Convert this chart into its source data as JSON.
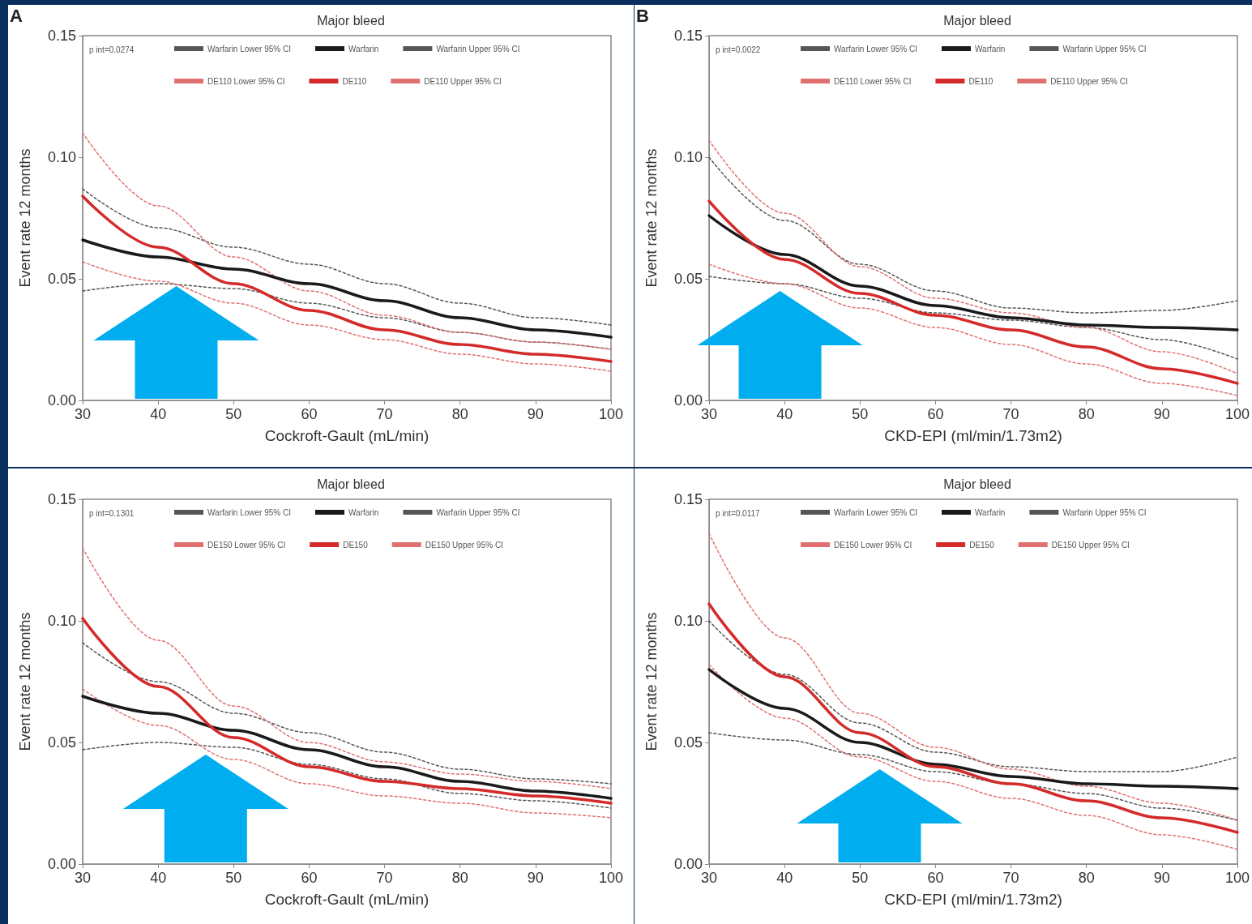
{
  "chart_data": [
    {
      "type": "line",
      "title": "Major bleed",
      "xlabel": "Cockroft-Gault (mL/min)",
      "ylabel": "Event rate 12 months",
      "annotations": [
        "p int=0.0274",
        "A"
      ],
      "x": [
        30,
        40,
        50,
        60,
        70,
        80,
        90,
        100
      ],
      "xlim": [
        30,
        100
      ],
      "xticks": [
        30,
        40,
        50,
        60,
        70,
        80,
        90,
        100
      ],
      "ylim": [
        0,
        0.15
      ],
      "yticks": [
        {
          "value": 0,
          "label": "0.00"
        },
        {
          "value": 0.05,
          "label": "0.05"
        },
        {
          "value": 0.1,
          "label": "0.10"
        },
        {
          "value": 0.15,
          "label": "0.15"
        }
      ],
      "grid": false,
      "legend": "top",
      "marker": "none",
      "series": [
        {
          "name": "Warfarin Lower 95% CI",
          "color": "#555555",
          "line_style": "dotted",
          "values": [
            0.045,
            0.048,
            0.046,
            0.04,
            0.034,
            0.028,
            0.024,
            0.021
          ]
        },
        {
          "name": "Warfarin",
          "color": "#1a1a1a",
          "line_style": "solid",
          "values": [
            0.066,
            0.059,
            0.054,
            0.048,
            0.041,
            0.034,
            0.029,
            0.026
          ]
        },
        {
          "name": "Warfarin Upper 95% CI",
          "color": "#555555",
          "line_style": "dotted",
          "values": [
            0.087,
            0.071,
            0.063,
            0.056,
            0.048,
            0.04,
            0.034,
            0.031
          ]
        },
        {
          "name": "DE110 Lower 95% CI",
          "color": "#e07070",
          "line_style": "dotted",
          "values": [
            0.057,
            0.049,
            0.04,
            0.031,
            0.025,
            0.019,
            0.015,
            0.012
          ]
        },
        {
          "name": "DE110",
          "color": "#d42a2a",
          "line_style": "solid",
          "values": [
            0.084,
            0.063,
            0.048,
            0.037,
            0.029,
            0.023,
            0.019,
            0.016
          ]
        },
        {
          "name": "DE110 Upper 95% CI",
          "color": "#e07070",
          "line_style": "dotted",
          "values": [
            0.11,
            0.08,
            0.059,
            0.045,
            0.035,
            0.028,
            0.024,
            0.021
          ]
        }
      ]
    },
    {
      "type": "line",
      "title": "Major bleed",
      "xlabel": "CKD-EPI (ml/min/1.73m2)",
      "ylabel": "Event rate 12 months",
      "annotations": [
        "p int=0.0022",
        "B"
      ],
      "x": [
        30,
        40,
        50,
        60,
        70,
        80,
        90,
        100
      ],
      "xlim": [
        30,
        100
      ],
      "xticks": [
        30,
        40,
        50,
        60,
        70,
        80,
        90,
        100
      ],
      "ylim": [
        0,
        0.15
      ],
      "yticks": [
        {
          "value": 0,
          "label": "0.00"
        },
        {
          "value": 0.05,
          "label": "0.05"
        },
        {
          "value": 0.1,
          "label": "0.10"
        },
        {
          "value": 0.15,
          "label": "0.15"
        }
      ],
      "grid": false,
      "legend": "top",
      "marker": "none",
      "series": [
        {
          "name": "Warfarin Lower 95% CI",
          "color": "#555555",
          "line_style": "dotted",
          "values": [
            0.051,
            0.048,
            0.042,
            0.036,
            0.033,
            0.03,
            0.025,
            0.017
          ]
        },
        {
          "name": "Warfarin",
          "color": "#1a1a1a",
          "line_style": "solid",
          "values": [
            0.076,
            0.06,
            0.047,
            0.039,
            0.034,
            0.031,
            0.03,
            0.029
          ]
        },
        {
          "name": "Warfarin Upper 95% CI",
          "color": "#555555",
          "line_style": "dotted",
          "values": [
            0.1,
            0.074,
            0.056,
            0.045,
            0.038,
            0.036,
            0.037,
            0.041
          ]
        },
        {
          "name": "DE110 Lower 95% CI",
          "color": "#e07070",
          "line_style": "dotted",
          "values": [
            0.056,
            0.048,
            0.038,
            0.03,
            0.023,
            0.015,
            0.007,
            0.002
          ]
        },
        {
          "name": "DE110",
          "color": "#d42a2a",
          "line_style": "solid",
          "values": [
            0.082,
            0.058,
            0.044,
            0.035,
            0.029,
            0.022,
            0.013,
            0.007
          ]
        },
        {
          "name": "DE110 Upper 95% CI",
          "color": "#e07070",
          "line_style": "dotted",
          "values": [
            0.107,
            0.077,
            0.055,
            0.042,
            0.036,
            0.03,
            0.02,
            0.011
          ]
        }
      ]
    },
    {
      "type": "line",
      "title": "Major bleed",
      "xlabel": "Cockroft-Gault (mL/min)",
      "ylabel": "Event rate 12 months",
      "annotations": [
        "p int=0.1301"
      ],
      "x": [
        30,
        40,
        50,
        60,
        70,
        80,
        90,
        100
      ],
      "xlim": [
        30,
        100
      ],
      "xticks": [
        30,
        40,
        50,
        60,
        70,
        80,
        90,
        100
      ],
      "ylim": [
        0,
        0.15
      ],
      "yticks": [
        {
          "value": 0,
          "label": "0.00"
        },
        {
          "value": 0.05,
          "label": "0.05"
        },
        {
          "value": 0.1,
          "label": "0.10"
        },
        {
          "value": 0.15,
          "label": "0.15"
        }
      ],
      "grid": false,
      "legend": "top",
      "marker": "none",
      "series": [
        {
          "name": "Warfarin Lower 95% CI",
          "color": "#555555",
          "line_style": "dotted",
          "values": [
            0.047,
            0.05,
            0.048,
            0.041,
            0.035,
            0.029,
            0.026,
            0.023
          ]
        },
        {
          "name": "Warfarin",
          "color": "#1a1a1a",
          "line_style": "solid",
          "values": [
            0.069,
            0.062,
            0.055,
            0.047,
            0.04,
            0.034,
            0.03,
            0.027
          ]
        },
        {
          "name": "Warfarin Upper 95% CI",
          "color": "#555555",
          "line_style": "dotted",
          "values": [
            0.091,
            0.075,
            0.062,
            0.054,
            0.046,
            0.039,
            0.035,
            0.033
          ]
        },
        {
          "name": "DE150 Lower 95% CI",
          "color": "#e07070",
          "line_style": "dotted",
          "values": [
            0.072,
            0.057,
            0.043,
            0.033,
            0.028,
            0.025,
            0.021,
            0.019
          ]
        },
        {
          "name": "DE150",
          "color": "#d42a2a",
          "line_style": "solid",
          "values": [
            0.101,
            0.073,
            0.052,
            0.04,
            0.034,
            0.031,
            0.028,
            0.025
          ]
        },
        {
          "name": "DE150 Upper 95% CI",
          "color": "#e07070",
          "line_style": "dotted",
          "values": [
            0.13,
            0.092,
            0.065,
            0.05,
            0.042,
            0.037,
            0.034,
            0.031
          ]
        }
      ]
    },
    {
      "type": "line",
      "title": "Major bleed",
      "xlabel": "CKD-EPI (ml/min/1.73m2)",
      "ylabel": "Event rate 12 months",
      "annotations": [
        "p int=0.0117"
      ],
      "x": [
        30,
        40,
        50,
        60,
        70,
        80,
        90,
        100
      ],
      "xlim": [
        30,
        100
      ],
      "xticks": [
        30,
        40,
        50,
        60,
        70,
        80,
        90,
        100
      ],
      "ylim": [
        0,
        0.15
      ],
      "yticks": [
        {
          "value": 0,
          "label": "0.00"
        },
        {
          "value": 0.05,
          "label": "0.05"
        },
        {
          "value": 0.1,
          "label": "0.10"
        },
        {
          "value": 0.15,
          "label": "0.15"
        }
      ],
      "grid": false,
      "legend": "top",
      "marker": "none",
      "series": [
        {
          "name": "Warfarin Lower 95% CI",
          "color": "#555555",
          "line_style": "dotted",
          "values": [
            0.054,
            0.051,
            0.045,
            0.038,
            0.033,
            0.029,
            0.023,
            0.018
          ]
        },
        {
          "name": "Warfarin",
          "color": "#1a1a1a",
          "line_style": "solid",
          "values": [
            0.08,
            0.064,
            0.05,
            0.041,
            0.036,
            0.033,
            0.032,
            0.031
          ]
        },
        {
          "name": "Warfarin Upper 95% CI",
          "color": "#555555",
          "line_style": "dotted",
          "values": [
            0.1,
            0.078,
            0.058,
            0.046,
            0.04,
            0.038,
            0.038,
            0.044
          ]
        },
        {
          "name": "DE150 Lower 95% CI",
          "color": "#e07070",
          "line_style": "dotted",
          "values": [
            0.082,
            0.06,
            0.044,
            0.034,
            0.027,
            0.02,
            0.012,
            0.006
          ]
        },
        {
          "name": "DE150",
          "color": "#d42a2a",
          "line_style": "solid",
          "values": [
            0.107,
            0.077,
            0.054,
            0.04,
            0.033,
            0.026,
            0.019,
            0.013
          ]
        },
        {
          "name": "DE150 Upper 95% CI",
          "color": "#e07070",
          "line_style": "dotted",
          "values": [
            0.136,
            0.093,
            0.062,
            0.048,
            0.039,
            0.032,
            0.025,
            0.018
          ]
        }
      ]
    }
  ]
}
